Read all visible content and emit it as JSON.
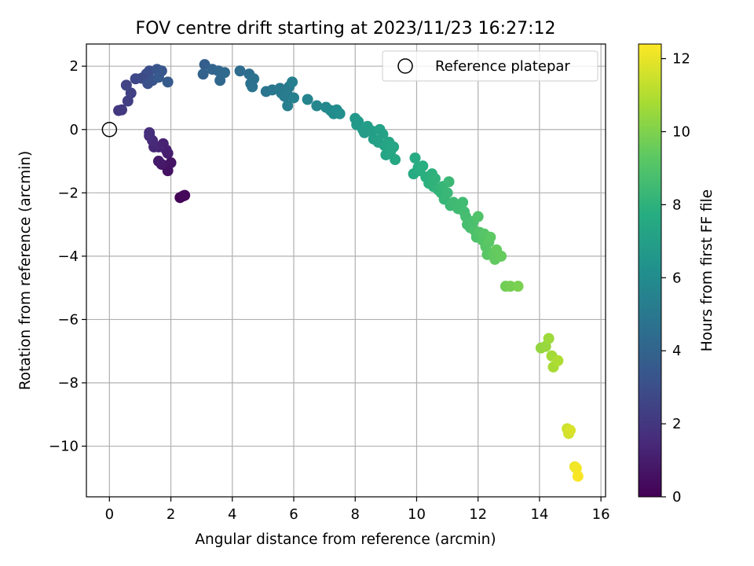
{
  "chart_data": {
    "type": "scatter",
    "title": "FOV centre drift starting at 2023/11/23 16:27:12",
    "xlabel": "Angular distance from reference (arcmin)",
    "ylabel": "Rotation from reference (arcmin)",
    "xlim": [
      -0.75,
      16.15
    ],
    "ylim": [
      -11.6,
      2.7
    ],
    "x_ticks": [
      0,
      2,
      4,
      6,
      8,
      10,
      12,
      14,
      16
    ],
    "y_ticks": [
      2,
      0,
      -2,
      -4,
      -6,
      -8,
      -10
    ],
    "x_tick_labels": [
      "0",
      "2",
      "4",
      "6",
      "8",
      "10",
      "12",
      "14",
      "16"
    ],
    "y_tick_labels": [
      "2",
      "0",
      "−2",
      "−4",
      "−6",
      "−8",
      "−10"
    ],
    "grid": true,
    "legend": {
      "position": "top-right",
      "entries": [
        "Reference platepar"
      ]
    },
    "reference_point": {
      "x": 0,
      "y": 0,
      "label": "Reference platepar"
    },
    "colorbar": {
      "label": "Hours from first FF file",
      "colormap": "viridis",
      "range": [
        0,
        12.4
      ],
      "ticks": [
        0,
        2,
        4,
        6,
        8,
        10,
        12
      ],
      "tick_labels": [
        "0",
        "2",
        "4",
        "6",
        "8",
        "10",
        "12"
      ]
    },
    "points": [
      [
        2.3,
        -2.15,
        0.1
      ],
      [
        2.4,
        -2.1,
        0.2
      ],
      [
        2.45,
        -2.08,
        0.3
      ],
      [
        1.9,
        -1.3,
        0.6
      ],
      [
        2.0,
        -1.05,
        0.7
      ],
      [
        1.7,
        -1.1,
        0.8
      ],
      [
        1.6,
        -1.0,
        0.9
      ],
      [
        1.9,
        -0.75,
        1.0
      ],
      [
        1.85,
        -0.65,
        1.1
      ],
      [
        1.75,
        -0.45,
        1.2
      ],
      [
        1.6,
        -0.55,
        1.3
      ],
      [
        1.45,
        -0.55,
        1.4
      ],
      [
        1.4,
        -0.35,
        1.5
      ],
      [
        1.3,
        -0.2,
        1.6
      ],
      [
        1.3,
        -0.1,
        1.7
      ],
      [
        0.3,
        0.6,
        2.0
      ],
      [
        0.4,
        0.62,
        2.1
      ],
      [
        0.6,
        0.9,
        2.3
      ],
      [
        0.7,
        1.15,
        2.4
      ],
      [
        0.55,
        1.4,
        2.5
      ],
      [
        0.85,
        1.6,
        2.7
      ],
      [
        1.05,
        1.62,
        2.8
      ],
      [
        1.2,
        1.75,
        2.9
      ],
      [
        1.3,
        1.85,
        3.0
      ],
      [
        1.25,
        1.45,
        3.1
      ],
      [
        1.4,
        1.55,
        3.2
      ],
      [
        1.55,
        1.9,
        3.3
      ],
      [
        1.7,
        1.85,
        3.4
      ],
      [
        1.6,
        1.65,
        3.5
      ],
      [
        1.9,
        1.5,
        3.6
      ],
      [
        3.1,
        2.05,
        3.8
      ],
      [
        3.05,
        1.75,
        3.9
      ],
      [
        3.35,
        1.9,
        4.0
      ],
      [
        3.55,
        1.85,
        4.1
      ],
      [
        3.6,
        1.55,
        4.2
      ],
      [
        3.75,
        1.8,
        4.3
      ],
      [
        4.25,
        1.85,
        4.4
      ],
      [
        4.55,
        1.75,
        4.5
      ],
      [
        4.6,
        1.45,
        4.6
      ],
      [
        4.7,
        1.6,
        4.7
      ],
      [
        4.65,
        1.35,
        4.75
      ],
      [
        5.1,
        1.2,
        4.85
      ],
      [
        5.3,
        1.25,
        4.9
      ],
      [
        5.55,
        1.3,
        5.0
      ],
      [
        5.6,
        1.15,
        5.05
      ],
      [
        5.7,
        1.05,
        5.1
      ],
      [
        5.85,
        1.35,
        5.15
      ],
      [
        5.8,
        1.1,
        5.2
      ],
      [
        5.8,
        0.75,
        5.3
      ],
      [
        5.95,
        1.5,
        5.35
      ],
      [
        6.0,
        1.0,
        5.4
      ],
      [
        6.45,
        0.95,
        5.6
      ],
      [
        6.75,
        0.75,
        5.7
      ],
      [
        7.05,
        0.7,
        5.8
      ],
      [
        7.2,
        0.6,
        5.9
      ],
      [
        7.3,
        0.5,
        6.0
      ],
      [
        7.4,
        0.62,
        6.05
      ],
      [
        7.5,
        0.5,
        6.1
      ],
      [
        8.0,
        0.35,
        6.6
      ],
      [
        8.05,
        0.15,
        6.7
      ],
      [
        8.1,
        0.25,
        6.75
      ],
      [
        8.25,
        0.0,
        6.8
      ],
      [
        8.3,
        -0.1,
        6.85
      ],
      [
        8.4,
        0.1,
        6.9
      ],
      [
        8.55,
        -0.05,
        6.95
      ],
      [
        8.6,
        -0.3,
        7.0
      ],
      [
        8.75,
        -0.4,
        7.05
      ],
      [
        8.8,
        0.0,
        7.1
      ],
      [
        8.9,
        -0.15,
        7.15
      ],
      [
        8.95,
        -0.5,
        7.2
      ],
      [
        9.0,
        -0.8,
        7.25
      ],
      [
        9.1,
        -0.4,
        7.3
      ],
      [
        9.15,
        -0.7,
        7.35
      ],
      [
        9.25,
        -0.55,
        7.4
      ],
      [
        9.3,
        -0.95,
        7.45
      ],
      [
        9.9,
        -1.4,
        7.6
      ],
      [
        9.95,
        -0.9,
        7.65
      ],
      [
        10.05,
        -1.2,
        7.7
      ],
      [
        10.1,
        -1.3,
        7.75
      ],
      [
        10.2,
        -1.15,
        7.8
      ],
      [
        10.3,
        -1.5,
        7.85
      ],
      [
        10.4,
        -1.7,
        7.9
      ],
      [
        10.5,
        -1.4,
        7.95
      ],
      [
        10.55,
        -1.8,
        8.0
      ],
      [
        10.6,
        -1.55,
        8.05
      ],
      [
        10.7,
        -1.9,
        8.1
      ],
      [
        10.8,
        -2.0,
        8.15
      ],
      [
        10.85,
        -1.8,
        8.2
      ],
      [
        10.9,
        -2.2,
        8.25
      ],
      [
        11.0,
        -2.0,
        8.3
      ],
      [
        11.05,
        -1.65,
        8.35
      ],
      [
        11.1,
        -2.4,
        8.4
      ],
      [
        11.2,
        -2.3,
        8.45
      ],
      [
        11.35,
        -2.5,
        8.5
      ],
      [
        11.5,
        -2.3,
        8.55
      ],
      [
        11.55,
        -2.6,
        8.6
      ],
      [
        11.6,
        -2.75,
        8.65
      ],
      [
        11.65,
        -3.0,
        8.7
      ],
      [
        11.75,
        -3.1,
        8.75
      ],
      [
        11.85,
        -2.9,
        8.8
      ],
      [
        11.9,
        -3.2,
        8.85
      ],
      [
        11.95,
        -3.4,
        8.9
      ],
      [
        12.0,
        -2.75,
        8.95
      ],
      [
        12.05,
        -3.25,
        9.0
      ],
      [
        12.15,
        -3.5,
        9.05
      ],
      [
        12.2,
        -3.3,
        9.1
      ],
      [
        12.25,
        -3.7,
        9.15
      ],
      [
        12.3,
        -3.95,
        9.2
      ],
      [
        12.35,
        -3.55,
        9.25
      ],
      [
        12.4,
        -3.4,
        9.3
      ],
      [
        12.5,
        -3.9,
        9.35
      ],
      [
        12.55,
        -4.1,
        9.4
      ],
      [
        12.6,
        -3.8,
        9.45
      ],
      [
        12.75,
        -4.0,
        9.5
      ],
      [
        12.9,
        -4.95,
        9.7
      ],
      [
        13.05,
        -4.95,
        9.8
      ],
      [
        13.3,
        -4.95,
        9.9
      ],
      [
        14.05,
        -6.9,
        10.4
      ],
      [
        14.2,
        -6.85,
        10.5
      ],
      [
        14.3,
        -6.6,
        10.6
      ],
      [
        14.4,
        -7.15,
        10.7
      ],
      [
        14.45,
        -7.5,
        10.8
      ],
      [
        14.6,
        -7.3,
        10.9
      ],
      [
        14.9,
        -9.45,
        11.5
      ],
      [
        14.95,
        -9.6,
        11.6
      ],
      [
        15.0,
        -9.5,
        11.7
      ],
      [
        15.15,
        -10.65,
        12.1
      ],
      [
        15.2,
        -10.7,
        12.2
      ],
      [
        15.25,
        -10.95,
        12.3
      ]
    ]
  }
}
